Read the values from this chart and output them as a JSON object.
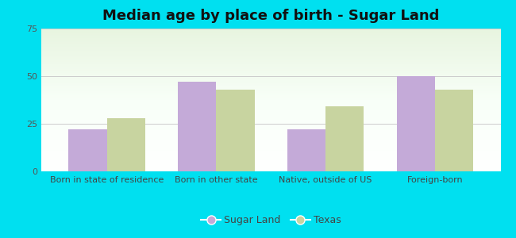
{
  "title": "Median age by place of birth - Sugar Land",
  "categories": [
    "Born in state of residence",
    "Born in other state",
    "Native, outside of US",
    "Foreign-born"
  ],
  "sugar_land_values": [
    22,
    47,
    22,
    50
  ],
  "texas_values": [
    28,
    43,
    34,
    43
  ],
  "sugar_land_color": "#c4aad8",
  "texas_color": "#c8d4a0",
  "ylim": [
    0,
    75
  ],
  "yticks": [
    0,
    25,
    50,
    75
  ],
  "legend_labels": [
    "Sugar Land",
    "Texas"
  ],
  "background_outer": "#00e0f0",
  "grid_color": "#cccccc",
  "title_fontsize": 13,
  "tick_fontsize": 8,
  "legend_fontsize": 9,
  "bar_width": 0.35
}
